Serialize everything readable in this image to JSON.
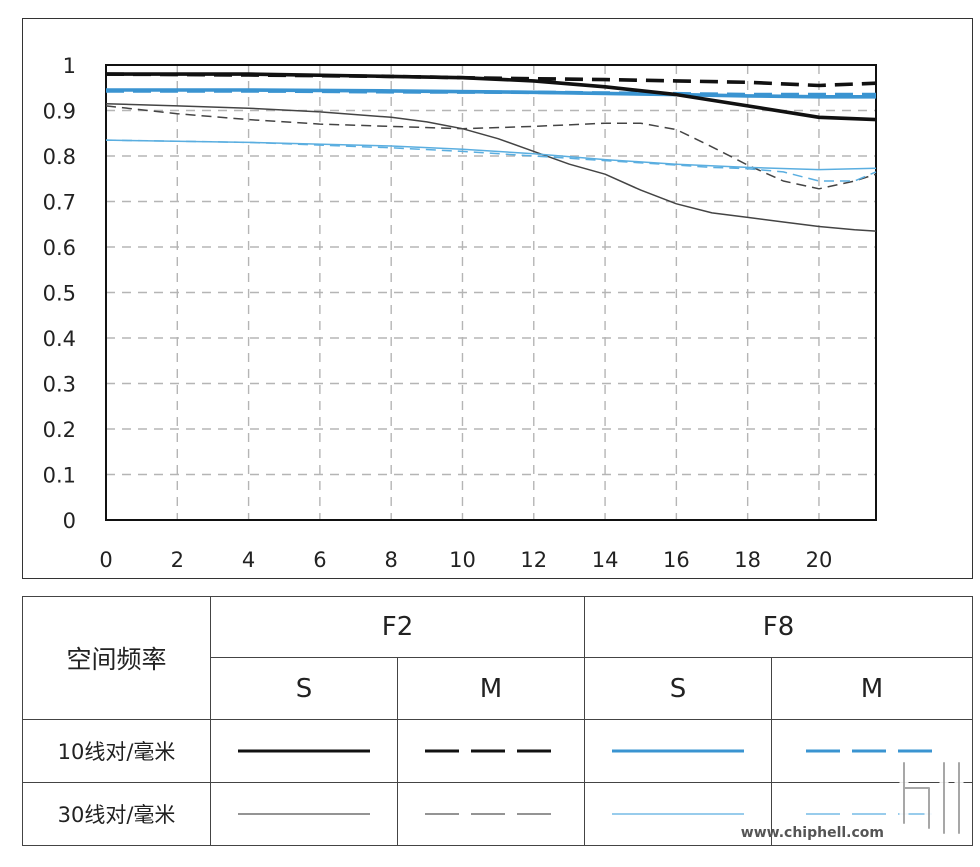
{
  "chart_data": {
    "type": "line",
    "x_ticks": [
      "0",
      "2",
      "4",
      "6",
      "8",
      "10",
      "12",
      "14",
      "16",
      "18",
      "20"
    ],
    "y_ticks": [
      "0",
      "0.1",
      "0.2",
      "0.3",
      "0.4",
      "0.5",
      "0.6",
      "0.7",
      "0.8",
      "0.9",
      "1"
    ],
    "xlim": [
      0,
      21.6
    ],
    "ylim": [
      0,
      1
    ],
    "grid": true,
    "series": [
      {
        "aperture": "F2",
        "orientation": "S",
        "frequency": "10线对/毫米",
        "color": "#111111",
        "dash": "solid",
        "weight": "thick",
        "x": [
          0,
          4,
          8,
          10,
          12,
          14,
          16,
          18,
          20,
          21.6
        ],
        "y": [
          0.98,
          0.98,
          0.975,
          0.972,
          0.965,
          0.952,
          0.935,
          0.91,
          0.885,
          0.88
        ]
      },
      {
        "aperture": "F2",
        "orientation": "M",
        "frequency": "10线对/毫米",
        "color": "#111111",
        "dash": "dashed",
        "weight": "thick",
        "x": [
          0,
          4,
          8,
          10,
          12,
          14,
          16,
          18,
          20,
          21.6
        ],
        "y": [
          0.98,
          0.978,
          0.975,
          0.972,
          0.97,
          0.968,
          0.965,
          0.962,
          0.955,
          0.96
        ]
      },
      {
        "aperture": "F8",
        "orientation": "S",
        "frequency": "10线对/毫米",
        "color": "#3a94d1",
        "dash": "solid",
        "weight": "thick",
        "x": [
          0,
          4,
          8,
          12,
          16,
          18,
          20,
          21.6
        ],
        "y": [
          0.945,
          0.945,
          0.943,
          0.94,
          0.935,
          0.932,
          0.93,
          0.93
        ]
      },
      {
        "aperture": "F8",
        "orientation": "M",
        "frequency": "10线对/毫米",
        "color": "#3a94d1",
        "dash": "dashed",
        "weight": "thick",
        "x": [
          0,
          4,
          8,
          12,
          16,
          18,
          20,
          21.6
        ],
        "y": [
          0.943,
          0.943,
          0.941,
          0.94,
          0.937,
          0.935,
          0.935,
          0.935
        ]
      },
      {
        "aperture": "F2",
        "orientation": "S",
        "frequency": "30线对/毫米",
        "color": "#444444",
        "dash": "solid",
        "weight": "thin",
        "x": [
          0,
          2,
          4,
          6,
          8,
          9,
          10,
          11,
          12,
          13,
          14,
          15,
          16,
          17,
          18,
          19,
          20,
          21,
          21.6
        ],
        "y": [
          0.915,
          0.91,
          0.905,
          0.897,
          0.885,
          0.875,
          0.86,
          0.838,
          0.81,
          0.782,
          0.76,
          0.725,
          0.695,
          0.675,
          0.665,
          0.655,
          0.645,
          0.638,
          0.635
        ]
      },
      {
        "aperture": "F2",
        "orientation": "M",
        "frequency": "30线对/毫米",
        "color": "#444444",
        "dash": "dashed",
        "weight": "thin",
        "x": [
          0,
          2,
          4,
          6,
          8,
          10,
          12,
          14,
          15,
          16,
          17,
          18,
          19,
          20,
          21,
          21.6
        ],
        "y": [
          0.91,
          0.893,
          0.88,
          0.87,
          0.865,
          0.86,
          0.865,
          0.872,
          0.872,
          0.858,
          0.82,
          0.78,
          0.745,
          0.728,
          0.745,
          0.76
        ]
      },
      {
        "aperture": "F8",
        "orientation": "S",
        "frequency": "30线对/毫米",
        "color": "#5aaee0",
        "dash": "solid",
        "weight": "thin",
        "x": [
          0,
          4,
          8,
          10,
          12,
          14,
          16,
          18,
          20,
          21.6
        ],
        "y": [
          0.835,
          0.83,
          0.822,
          0.815,
          0.805,
          0.792,
          0.782,
          0.775,
          0.77,
          0.773
        ]
      },
      {
        "aperture": "F8",
        "orientation": "M",
        "frequency": "30线对/毫米",
        "color": "#5aaee0",
        "dash": "dashed",
        "weight": "thin",
        "x": [
          0,
          4,
          8,
          10,
          12,
          14,
          16,
          17,
          18,
          19,
          20,
          21,
          21.6
        ],
        "y": [
          0.835,
          0.83,
          0.818,
          0.81,
          0.8,
          0.79,
          0.78,
          0.775,
          0.772,
          0.765,
          0.745,
          0.745,
          0.765
        ]
      }
    ]
  },
  "legend": {
    "corner_label": "空间频率",
    "apertures": [
      "F2",
      "F8"
    ],
    "orientations": [
      "S",
      "M",
      "S",
      "M"
    ],
    "rows": [
      {
        "label": "10线对/毫米"
      },
      {
        "label": "30线对/毫米"
      }
    ]
  },
  "watermark": {
    "site": "www.chiphell.com"
  }
}
